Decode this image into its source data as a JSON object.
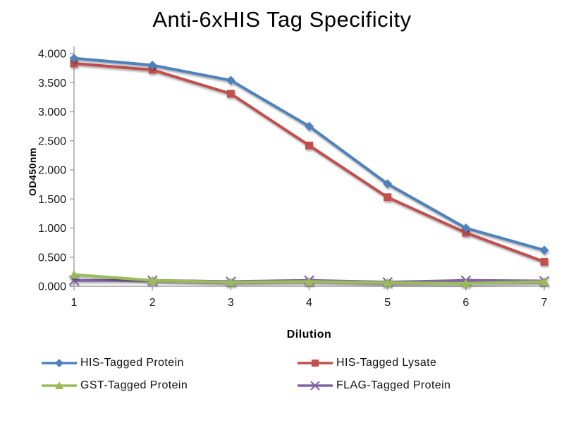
{
  "page": {
    "background": "#ffffff",
    "axis_color": "#a6a6a6",
    "tick_text_color": "#1a1a1a"
  },
  "chart_data": {
    "type": "line",
    "title": "Anti-6xHIS Tag Specificity",
    "xlabel": "Dilution",
    "ylabel": "OD450nm",
    "x": [
      1,
      2,
      3,
      4,
      5,
      6,
      7
    ],
    "xtick_labels": [
      "1",
      "2",
      "3",
      "4",
      "5",
      "6",
      "7"
    ],
    "ylim": [
      0,
      4.0
    ],
    "ytick_step": 0.5,
    "ytick_decimals": 3,
    "ytick_labels": [
      "0.000",
      "0.500",
      "1.000",
      "1.500",
      "2.000",
      "2.500",
      "3.000",
      "3.500",
      "4.000"
    ],
    "grid": false,
    "legend_position": "bottom-two-columns",
    "series": [
      {
        "name": "HIS-Tagged Protein",
        "color": "#4F81BD",
        "marker": "diamond",
        "values": [
          3.92,
          3.8,
          3.54,
          2.75,
          1.76,
          1.0,
          0.62
        ]
      },
      {
        "name": "HIS-Tagged Lysate",
        "color": "#C0504D",
        "marker": "square",
        "values": [
          3.83,
          3.72,
          3.31,
          2.42,
          1.53,
          0.92,
          0.42
        ]
      },
      {
        "name": "GST-Tagged Protein",
        "color": "#9BBB59",
        "marker": "triangle",
        "values": [
          0.2,
          0.1,
          0.07,
          0.08,
          0.06,
          0.05,
          0.08
        ]
      },
      {
        "name": "FLAG-Tagged Protein",
        "color": "#8064A2",
        "marker": "x",
        "values": [
          0.1,
          0.1,
          0.08,
          0.1,
          0.07,
          0.1,
          0.09
        ]
      }
    ]
  }
}
